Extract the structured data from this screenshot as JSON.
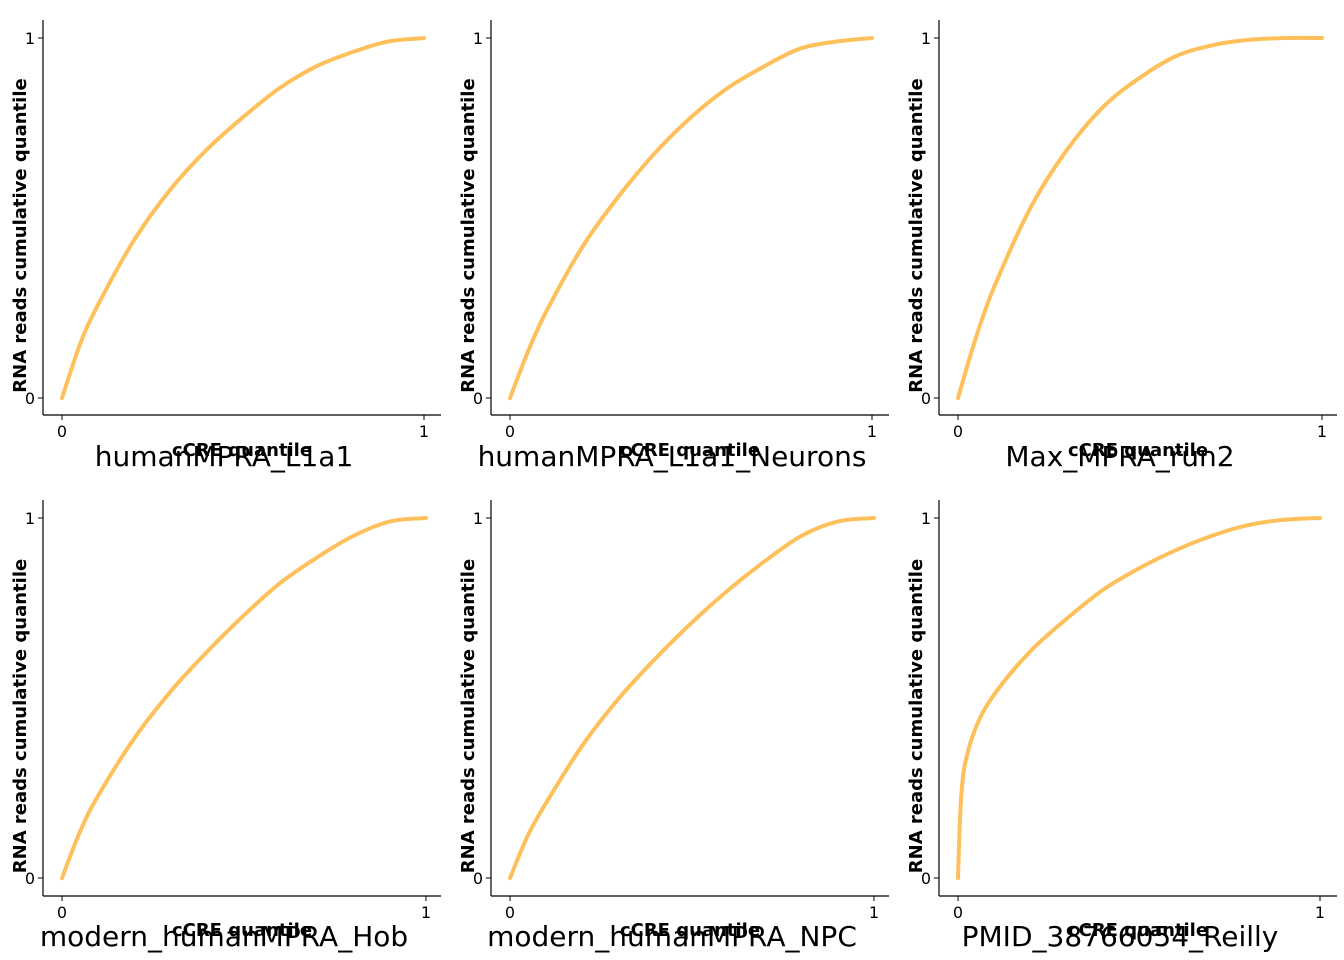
{
  "chart_data": [
    {
      "type": "line",
      "title": "humanMPRA_L1a1",
      "xlabel": "cCRE quantile",
      "ylabel": "RNA reads cumulative quantile",
      "xticks": [
        "0",
        "1"
      ],
      "yticks": [
        "0",
        "1"
      ],
      "xlim": [
        0,
        1
      ],
      "ylim": [
        0,
        1
      ],
      "grid": false,
      "color": "#FDC05A",
      "series": [
        {
          "x": [
            0,
            0.05,
            0.1,
            0.2,
            0.3,
            0.4,
            0.5,
            0.6,
            0.7,
            0.8,
            0.9,
            1.0
          ],
          "y": [
            0,
            0.15,
            0.26,
            0.44,
            0.58,
            0.69,
            0.78,
            0.86,
            0.92,
            0.96,
            0.99,
            1.0
          ]
        }
      ]
    },
    {
      "type": "line",
      "title": "humanMPRA_L1a1_Neurons",
      "xlabel": "cCRE quantile",
      "ylabel": "RNA reads cumulative quantile",
      "xticks": [
        "0",
        "1"
      ],
      "yticks": [
        "0",
        "1"
      ],
      "xlim": [
        0,
        1
      ],
      "ylim": [
        0,
        1
      ],
      "grid": false,
      "color": "#FDC05A",
      "series": [
        {
          "x": [
            0,
            0.05,
            0.1,
            0.2,
            0.3,
            0.4,
            0.5,
            0.6,
            0.7,
            0.8,
            0.9,
            1.0
          ],
          "y": [
            0,
            0.13,
            0.24,
            0.42,
            0.56,
            0.68,
            0.78,
            0.86,
            0.92,
            0.97,
            0.99,
            1.0
          ]
        }
      ]
    },
    {
      "type": "line",
      "title": "Max_MPRA_run2",
      "xlabel": "cCRE quantile",
      "ylabel": "RNA reads cumulative quantile",
      "xticks": [
        "0",
        "1"
      ],
      "yticks": [
        "0",
        "1"
      ],
      "xlim": [
        0,
        1
      ],
      "ylim": [
        0,
        1
      ],
      "grid": false,
      "color": "#FDC05A",
      "series": [
        {
          "x": [
            0,
            0.05,
            0.1,
            0.2,
            0.3,
            0.4,
            0.5,
            0.6,
            0.7,
            0.8,
            0.9,
            1.0
          ],
          "y": [
            0,
            0.17,
            0.31,
            0.53,
            0.69,
            0.81,
            0.89,
            0.95,
            0.98,
            0.995,
            1.0,
            1.0
          ]
        }
      ]
    },
    {
      "type": "line",
      "title": "modern_humanMPRA_Hob",
      "xlabel": "cCRE quantile",
      "ylabel": "RNA reads cumulative quantile",
      "xticks": [
        "0",
        "1"
      ],
      "yticks": [
        "0",
        "1"
      ],
      "xlim": [
        0,
        1
      ],
      "ylim": [
        0,
        1
      ],
      "grid": false,
      "color": "#FDC05A",
      "series": [
        {
          "x": [
            0,
            0.05,
            0.1,
            0.2,
            0.3,
            0.4,
            0.5,
            0.6,
            0.7,
            0.8,
            0.9,
            1.0
          ],
          "y": [
            0,
            0.13,
            0.23,
            0.39,
            0.52,
            0.63,
            0.73,
            0.82,
            0.89,
            0.95,
            0.99,
            1.0
          ]
        }
      ]
    },
    {
      "type": "line",
      "title": "modern_humanMPRA_NPC",
      "xlabel": "cCRE quantile",
      "ylabel": "RNA reads cumulative quantile",
      "xticks": [
        "0",
        "1"
      ],
      "yticks": [
        "0",
        "1"
      ],
      "xlim": [
        0,
        1
      ],
      "ylim": [
        0,
        1
      ],
      "grid": false,
      "color": "#FDC05A",
      "series": [
        {
          "x": [
            0,
            0.05,
            0.1,
            0.2,
            0.3,
            0.4,
            0.5,
            0.6,
            0.7,
            0.8,
            0.9,
            1.0
          ],
          "y": [
            0,
            0.12,
            0.21,
            0.37,
            0.5,
            0.61,
            0.71,
            0.8,
            0.88,
            0.95,
            0.99,
            1.0
          ]
        }
      ]
    },
    {
      "type": "line",
      "title": "PMID_38766054_Reilly",
      "xlabel": "cCRE quantile",
      "ylabel": "RNA reads cumulative quantile",
      "xticks": [
        "0",
        "1"
      ],
      "yticks": [
        "0",
        "1"
      ],
      "xlim": [
        0,
        1
      ],
      "ylim": [
        0,
        1
      ],
      "grid": false,
      "color": "#FDC05A",
      "series": [
        {
          "x": [
            0,
            0.005,
            0.01,
            0.02,
            0.05,
            0.1,
            0.2,
            0.3,
            0.4,
            0.5,
            0.6,
            0.7,
            0.8,
            0.9,
            1.0
          ],
          "y": [
            0,
            0.15,
            0.24,
            0.32,
            0.42,
            0.51,
            0.63,
            0.72,
            0.8,
            0.86,
            0.91,
            0.95,
            0.98,
            0.995,
            1.0
          ]
        }
      ]
    }
  ]
}
